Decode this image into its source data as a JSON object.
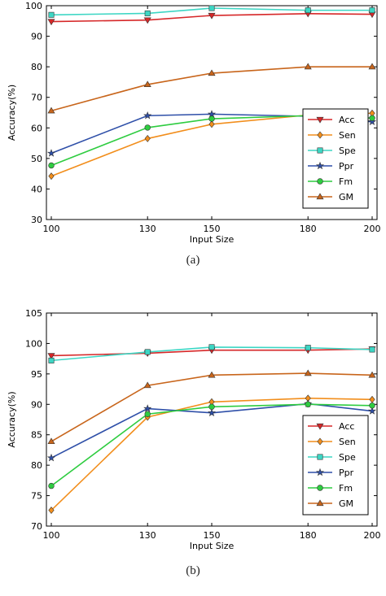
{
  "chart_data": [
    {
      "type": "line",
      "caption": "(a)",
      "xlabel": "Input Size",
      "ylabel": "Accuracy(%)",
      "x": [
        100,
        130,
        150,
        180,
        200
      ],
      "xticks": [
        "100",
        "130",
        "150",
        "180",
        "200"
      ],
      "ylim": [
        30,
        100
      ],
      "yticks": [
        30,
        40,
        50,
        60,
        70,
        80,
        90,
        100
      ],
      "legend_position": "lower-right",
      "series": [
        {
          "name": "Acc",
          "color": "#d62728",
          "marker": "triangle-down",
          "values": [
            94.8,
            95.3,
            96.8,
            97.4,
            97.2
          ]
        },
        {
          "name": "Sen",
          "color": "#f28e1c",
          "marker": "diamond",
          "values": [
            44.2,
            56.5,
            61.2,
            64.2,
            64.8
          ]
        },
        {
          "name": "Spe",
          "color": "#3dd6c4",
          "marker": "square",
          "values": [
            97.0,
            97.5,
            99.2,
            98.5,
            98.5
          ]
        },
        {
          "name": "Ppr",
          "color": "#2e4fa8",
          "marker": "star",
          "values": [
            51.7,
            64.0,
            64.5,
            63.8,
            62.0
          ]
        },
        {
          "name": "Fm",
          "color": "#2ecc40",
          "marker": "circle",
          "values": [
            47.7,
            60.1,
            63.0,
            64.0,
            63.2
          ]
        },
        {
          "name": "GM",
          "color": "#c8651b",
          "marker": "triangle-up",
          "values": [
            65.6,
            74.2,
            77.9,
            80.0,
            80.0
          ]
        }
      ]
    },
    {
      "type": "line",
      "caption": "(b)",
      "xlabel": "Input Size",
      "ylabel": "Accuracy(%)",
      "x": [
        100,
        130,
        150,
        180,
        200
      ],
      "xticks": [
        "100",
        "130",
        "150",
        "180",
        "200"
      ],
      "ylim": [
        70,
        105
      ],
      "yticks": [
        70,
        75,
        80,
        85,
        90,
        95,
        100,
        105
      ],
      "legend_position": "lower-right",
      "series": [
        {
          "name": "Acc",
          "color": "#d62728",
          "marker": "triangle-down",
          "values": [
            98.0,
            98.4,
            98.9,
            98.9,
            99.1
          ]
        },
        {
          "name": "Sen",
          "color": "#f28e1c",
          "marker": "diamond",
          "values": [
            72.6,
            87.9,
            90.4,
            91.0,
            90.8
          ]
        },
        {
          "name": "Spe",
          "color": "#3dd6c4",
          "marker": "square",
          "values": [
            97.2,
            98.6,
            99.4,
            99.3,
            99.0
          ]
        },
        {
          "name": "Ppr",
          "color": "#2e4fa8",
          "marker": "star",
          "values": [
            81.2,
            89.3,
            88.6,
            90.1,
            88.9
          ]
        },
        {
          "name": "Fm",
          "color": "#2ecc40",
          "marker": "circle",
          "values": [
            76.6,
            88.4,
            89.6,
            90.0,
            89.8
          ]
        },
        {
          "name": "GM",
          "color": "#c8651b",
          "marker": "triangle-up",
          "values": [
            83.9,
            93.1,
            94.8,
            95.1,
            94.8
          ]
        }
      ]
    }
  ]
}
